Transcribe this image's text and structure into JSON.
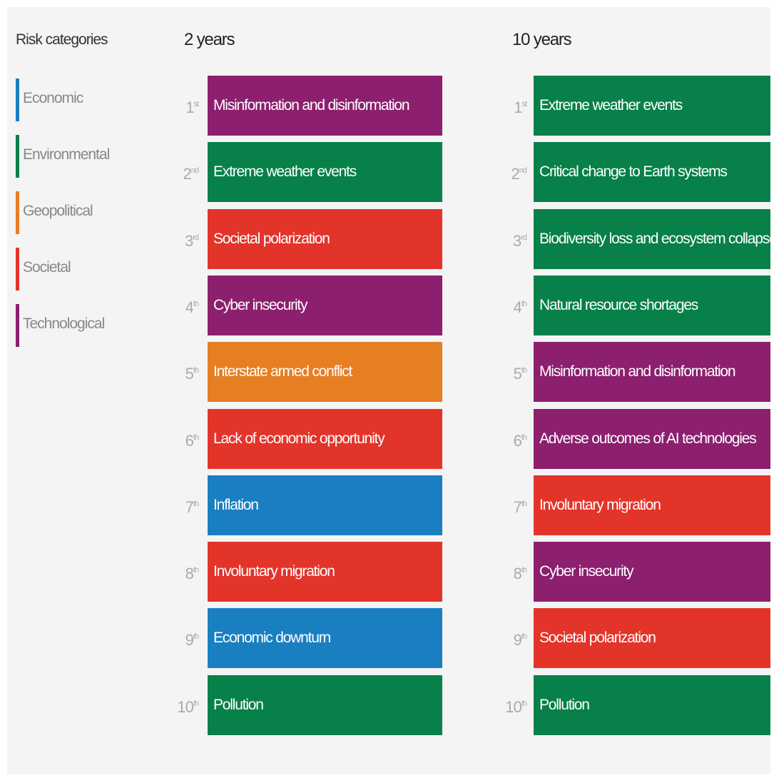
{
  "legend": {
    "title": "Risk categories",
    "categories": [
      {
        "name": "Economic",
        "color": "#1a7fc1"
      },
      {
        "name": "Environmental",
        "color": "#07804a"
      },
      {
        "name": "Geopolitical",
        "color": "#e67e22"
      },
      {
        "name": "Societal",
        "color": "#e3342a"
      },
      {
        "name": "Technological",
        "color": "#8c1f6e"
      }
    ]
  },
  "columns": [
    {
      "title": "2 years",
      "items": [
        {
          "rank": "1",
          "suffix": "st",
          "label": "Misinformation and disinformation",
          "category": "Technological"
        },
        {
          "rank": "2",
          "suffix": "nd",
          "label": "Extreme weather events",
          "category": "Environmental"
        },
        {
          "rank": "3",
          "suffix": "rd",
          "label": "Societal polarization",
          "category": "Societal"
        },
        {
          "rank": "4",
          "suffix": "th",
          "label": "Cyber insecurity",
          "category": "Technological"
        },
        {
          "rank": "5",
          "suffix": "th",
          "label": "Interstate armed conflict",
          "category": "Geopolitical"
        },
        {
          "rank": "6",
          "suffix": "th",
          "label": "Lack of economic opportunity",
          "category": "Societal"
        },
        {
          "rank": "7",
          "suffix": "th",
          "label": "Inflation",
          "category": "Economic"
        },
        {
          "rank": "8",
          "suffix": "th",
          "label": "Involuntary migration",
          "category": "Societal"
        },
        {
          "rank": "9",
          "suffix": "th",
          "label": "Economic downturn",
          "category": "Economic"
        },
        {
          "rank": "10",
          "suffix": "th",
          "label": "Pollution",
          "category": "Environmental"
        }
      ]
    },
    {
      "title": "10 years",
      "items": [
        {
          "rank": "1",
          "suffix": "st",
          "label": "Extreme weather events",
          "category": "Environmental"
        },
        {
          "rank": "2",
          "suffix": "nd",
          "label": "Critical change to Earth systems",
          "category": "Environmental"
        },
        {
          "rank": "3",
          "suffix": "rd",
          "label": "Biodiversity loss and ecosystem collapse",
          "category": "Environmental"
        },
        {
          "rank": "4",
          "suffix": "th",
          "label": "Natural resource shortages",
          "category": "Environmental"
        },
        {
          "rank": "5",
          "suffix": "th",
          "label": "Misinformation and disinformation",
          "category": "Technological"
        },
        {
          "rank": "6",
          "suffix": "th",
          "label": "Adverse outcomes of AI technologies",
          "category": "Technological"
        },
        {
          "rank": "7",
          "suffix": "th",
          "label": "Involuntary migration",
          "category": "Societal"
        },
        {
          "rank": "8",
          "suffix": "th",
          "label": "Cyber insecurity",
          "category": "Technological"
        },
        {
          "rank": "9",
          "suffix": "th",
          "label": "Societal polarization",
          "category": "Societal"
        },
        {
          "rank": "10",
          "suffix": "th",
          "label": "Pollution",
          "category": "Environmental"
        }
      ]
    }
  ]
}
